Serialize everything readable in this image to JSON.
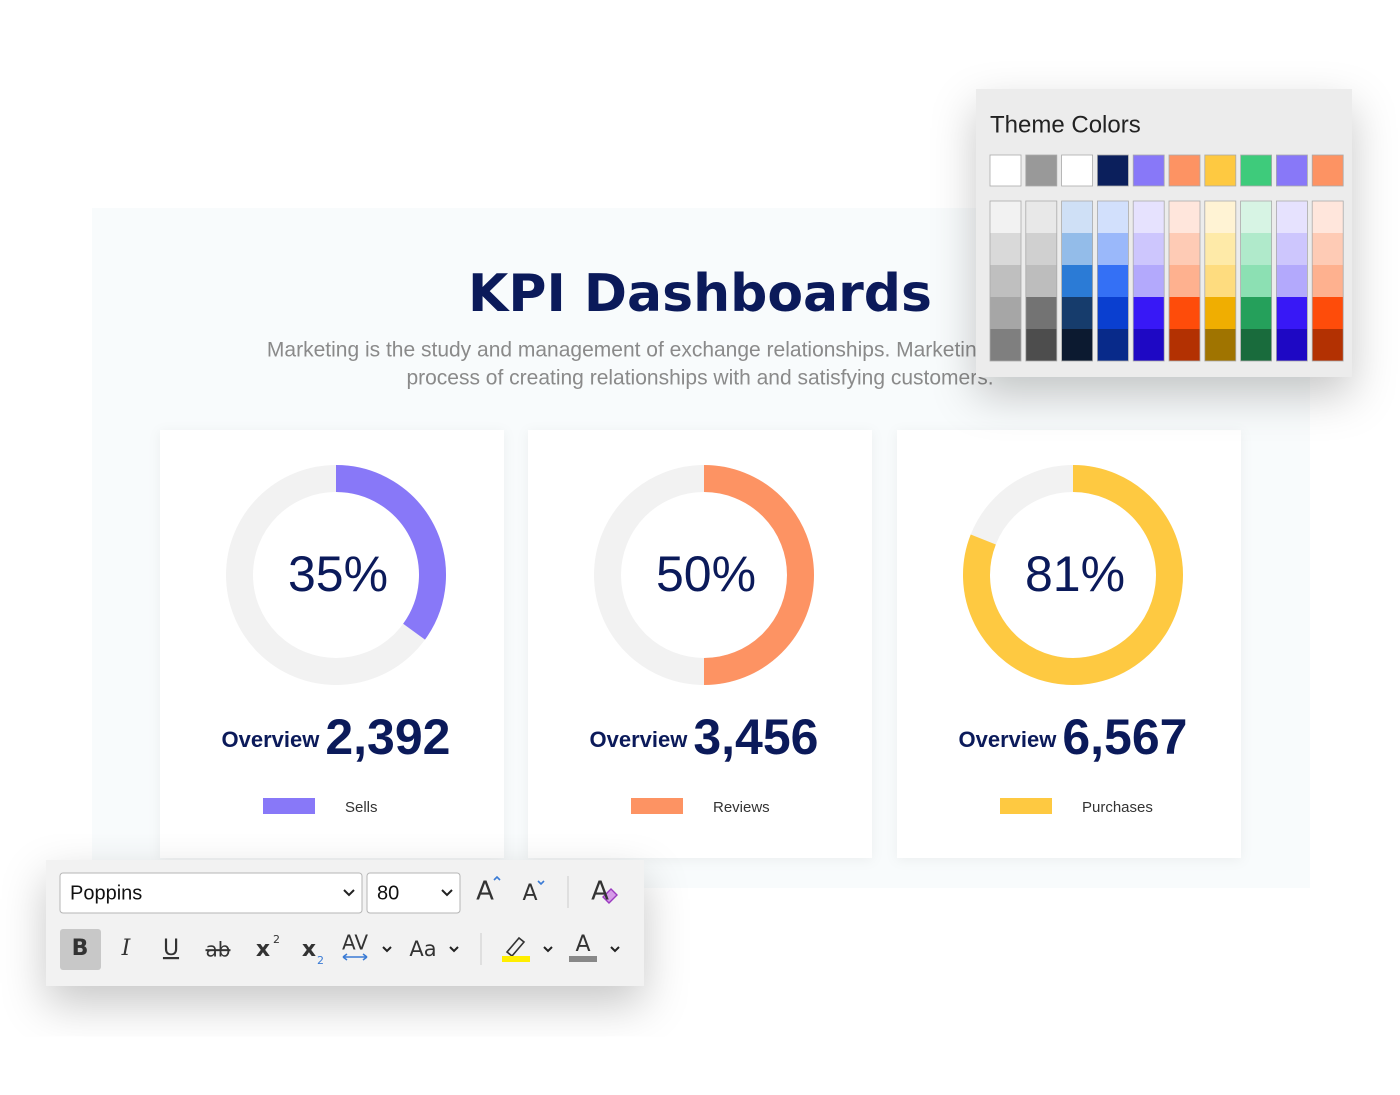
{
  "slide": {
    "title": "KPI Dashboards",
    "subtitle": [
      "Marketing is the study and management of exchange relationships. Marketing is the business",
      "process of creating relationships with and satisfying customers."
    ]
  },
  "chart_data": [
    {
      "type": "donut",
      "series": [
        {
          "name": "Sells",
          "color": "#8878f8",
          "values": [
            35
          ]
        }
      ],
      "value_labels": [
        "35%"
      ],
      "overview_label": "Overview",
      "overview_value": "2,392",
      "track_color": "#f2f2f2"
    },
    {
      "type": "donut",
      "series": [
        {
          "name": "Reviews",
          "color": "#fd9363",
          "values": [
            50
          ]
        }
      ],
      "value_labels": [
        "50%"
      ],
      "overview_label": "Overview",
      "overview_value": "3,456",
      "track_color": "#f2f2f2"
    },
    {
      "type": "donut",
      "series": [
        {
          "name": "Purchases",
          "color": "#fec941",
          "values": [
            81
          ]
        }
      ],
      "value_labels": [
        "81%"
      ],
      "overview_label": "Overview",
      "overview_value": "6,567",
      "track_color": "#f2f2f2"
    }
  ],
  "color_picker": {
    "title": "Theme Colors",
    "theme": [
      "#ffffff",
      "#999999",
      "#ffffff",
      "#0b1f5c",
      "#8878f8",
      "#fd9363",
      "#fec941",
      "#3ecb7b",
      "#8878f8",
      "#fd9363"
    ],
    "shades": [
      [
        "#f2f2f2",
        "#d9d9d9",
        "#bfbfbf",
        "#a6a6a6",
        "#7f7f7f"
      ],
      [
        "#e8e8e8",
        "#d0d0d0",
        "#bdbdbd",
        "#737373",
        "#4d4d4d"
      ],
      [
        "#cfe0f6",
        "#93bce9",
        "#2b7bd6",
        "#163c6c",
        "#0c1a30"
      ],
      [
        "#d2e0fc",
        "#9ab8fa",
        "#3470f5",
        "#0a3fd0",
        "#082a8a"
      ],
      [
        "#e6e2fe",
        "#cdc6fd",
        "#b3a9fc",
        "#3818f6",
        "#1e08c4"
      ],
      [
        "#ffe6dc",
        "#fecbb5",
        "#feb18f",
        "#fe4c0a",
        "#b33102"
      ],
      [
        "#fff3d4",
        "#feeaa8",
        "#fedc7f",
        "#f0ae01",
        "#a07400"
      ],
      [
        "#d7f4e4",
        "#b0eacb",
        "#8ce0b3",
        "#25a05b",
        "#196b3c"
      ],
      [
        "#e6e2fe",
        "#cdc6fd",
        "#b3a9fc",
        "#3818f6",
        "#1e08c4"
      ],
      [
        "#ffe6dc",
        "#fecbb5",
        "#feb18f",
        "#fe4c0a",
        "#b33102"
      ]
    ]
  },
  "toolbar": {
    "font": "Poppins",
    "size": "80",
    "buttons": [
      {
        "label": "A"
      },
      {
        "label": "A"
      },
      {
        "label": "A"
      },
      {
        "label": "B"
      },
      {
        "label": "I"
      },
      {
        "label": "U"
      },
      {
        "label": "ab"
      },
      {
        "label": "x",
        "sup": "2"
      },
      {
        "label": "x",
        "sub": "2"
      },
      {
        "label": "AV"
      },
      {
        "label": "Aa"
      },
      {
        "label": "A"
      }
    ]
  }
}
